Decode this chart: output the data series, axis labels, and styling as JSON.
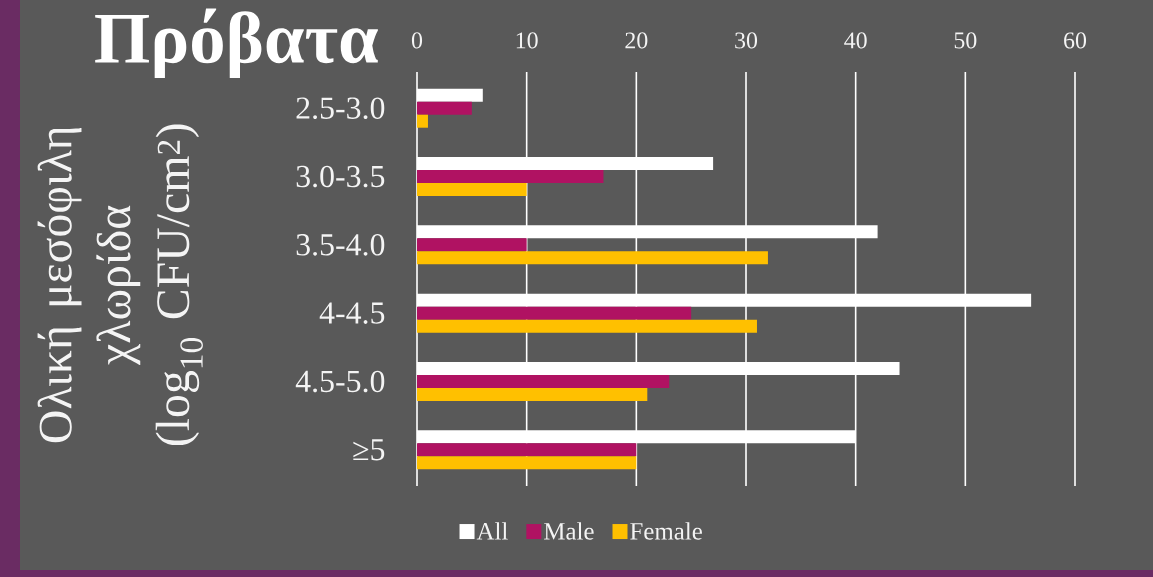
{
  "chart_data": {
    "type": "bar",
    "orientation": "horizontal",
    "title": "Πρόβατα",
    "ylabel": "Ολική μεσόφιλη χλωρίδα (log$_{10}$ CFU/cm$^{2}$)",
    "categories": [
      "2.5-3.0",
      "3.0-3.5",
      "3.5-4.0",
      "4-4.5",
      "4.5-5.0",
      "≥5"
    ],
    "series": [
      {
        "name": "All",
        "color": "#ffffff",
        "values": [
          6,
          27,
          42,
          56,
          44,
          40
        ]
      },
      {
        "name": "Male",
        "color": "#b01262",
        "values": [
          5,
          17,
          10,
          25,
          23,
          20
        ]
      },
      {
        "name": "Female",
        "color": "#ffc000",
        "values": [
          1,
          10,
          32,
          31,
          21,
          20
        ]
      }
    ],
    "xlim": [
      0,
      60
    ],
    "xticks": [
      0,
      10,
      20,
      30,
      40,
      50,
      60
    ],
    "grid": "x",
    "legend": "bottom"
  }
}
